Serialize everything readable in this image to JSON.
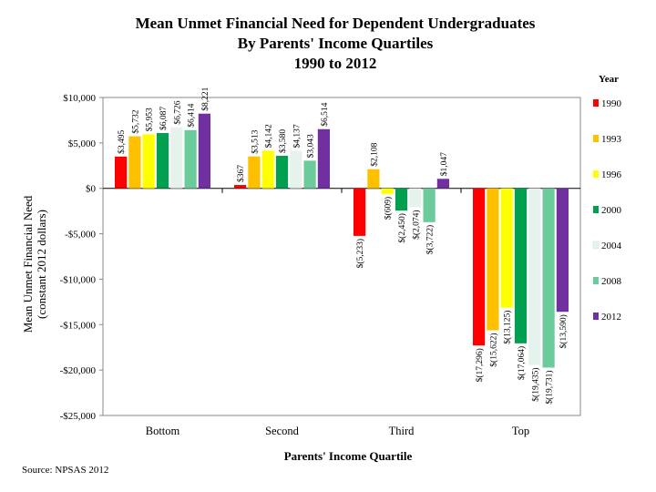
{
  "chart_data": {
    "type": "bar",
    "title": [
      "Mean Unmet Financial Need for Dependent Undergraduates",
      "By Parents' Income Quartiles",
      "1990 to 2012"
    ],
    "xlabel": "Parents' Income Quartile",
    "ylabel": [
      "Mean Unmet Financial Need",
      "(constant 2012 dollars)"
    ],
    "ylim": [
      -25000,
      10000
    ],
    "yticks": [
      10000,
      5000,
      0,
      -5000,
      -10000,
      -15000,
      -20000,
      -25000
    ],
    "ytick_labels": [
      "$10,000",
      "$5,000",
      "$0",
      "-$5,000",
      "-$10,000",
      "-$15,000",
      "-$20,000",
      "-$25,000"
    ],
    "categories": [
      "Bottom",
      "Second",
      "Third",
      "Top"
    ],
    "legend_title": "Year",
    "legend_position": "right",
    "series": [
      {
        "name": "1990",
        "color": "#ff0000",
        "values": [
          3495,
          367,
          -5233,
          -17296
        ],
        "labels": [
          "$3,495",
          "$367",
          "$(5,233)",
          "$(17,296)"
        ]
      },
      {
        "name": "1993",
        "color": "#ffc000",
        "values": [
          5732,
          3513,
          2108,
          -15622
        ],
        "labels": [
          "$5,732",
          "$3,513",
          "$2,108",
          "$(15,622)"
        ]
      },
      {
        "name": "1996",
        "color": "#ffff00",
        "values": [
          5953,
          4142,
          -609,
          -13125
        ],
        "labels": [
          "$5,953",
          "$4,142",
          "$(609)",
          "$(13,125)"
        ]
      },
      {
        "name": "2000",
        "color": "#00a050",
        "values": [
          6087,
          3580,
          -2450,
          -17064
        ],
        "labels": [
          "$6,087",
          "$3,580",
          "$(2,450)",
          "$(17,064)"
        ]
      },
      {
        "name": "2004",
        "color": "#e6f3ec",
        "values": [
          6726,
          4137,
          -2074,
          -19435
        ],
        "labels": [
          "$6,726",
          "$4,137",
          "$(2,074)",
          "$(19,435)"
        ]
      },
      {
        "name": "2008",
        "color": "#6ccb9a",
        "values": [
          6414,
          3043,
          -3722,
          -19731
        ],
        "labels": [
          "$6,414",
          "$3,043",
          "$(3,722)",
          "$(19,731)"
        ]
      },
      {
        "name": "2012",
        "color": "#7030a0",
        "values": [
          8221,
          6514,
          1047,
          -13590
        ],
        "labels": [
          "$8,221",
          "$6,514",
          "$1,047",
          "$(13,590)"
        ]
      }
    ],
    "source": "Source: NPSAS 2012"
  }
}
